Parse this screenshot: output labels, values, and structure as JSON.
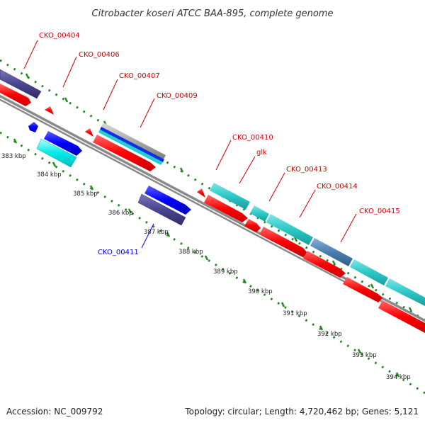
{
  "title": "Citrobacter koseri ATCC BAA-895, complete genome",
  "footer": {
    "accession": "Accession: NC_009792",
    "topology": "Topology: circular; Length: 4,720,462 bp; Genes: 5,121"
  },
  "colors": {
    "forward_cds": "#ff0000",
    "reverse_cds": "#0000ff",
    "forward_gene": "#2cc7c7",
    "reverse_gene": "#00e5e5",
    "dark_gene": "#4b4590",
    "backbone": "#8a8a8a",
    "tick": "#228822",
    "label_forward": "#cc0000",
    "label_reverse": "#0000cc"
  },
  "kbp_labels": [
    "383 kbp",
    "384 kbp",
    "385 kbp",
    "386 kbp",
    "387 kbp",
    "388 kbp",
    "389 kbp",
    "390 kbp",
    "391 kbp",
    "392 kbp",
    "393 kbp",
    "394 kbp"
  ],
  "gene_labels": [
    {
      "id": "CKO_00404",
      "strand": "forward"
    },
    {
      "id": "CKO_00406",
      "strand": "forward"
    },
    {
      "id": "CKO_00407",
      "strand": "forward"
    },
    {
      "id": "CKO_00409",
      "strand": "forward"
    },
    {
      "id": "CKO_00410",
      "strand": "forward"
    },
    {
      "id": "glk",
      "strand": "forward"
    },
    {
      "id": "CKO_00413",
      "strand": "forward"
    },
    {
      "id": "CKO_00414",
      "strand": "forward"
    },
    {
      "id": "CKO_00415",
      "strand": "forward"
    },
    {
      "id": "CKO_00411",
      "strand": "reverse"
    }
  ]
}
